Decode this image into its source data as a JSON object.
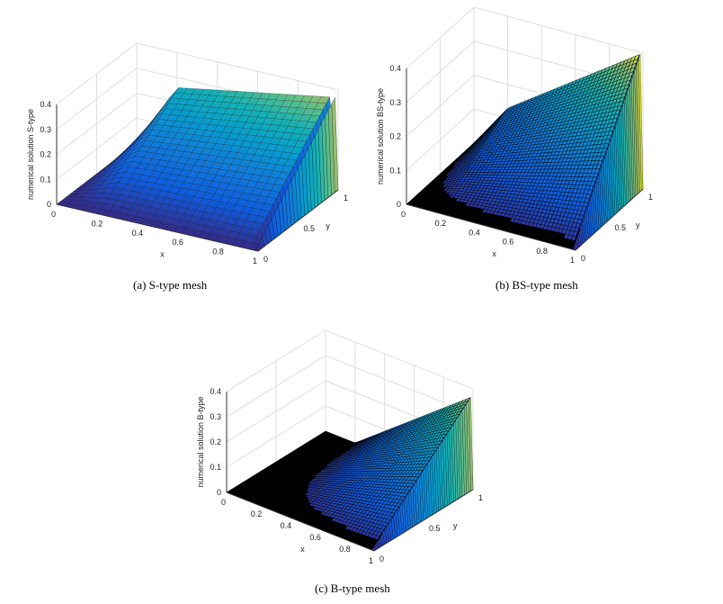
{
  "chart_data": [
    {
      "type": "surface",
      "caption": "(a)  S-type mesh",
      "zlabel": "numerical solution S-type",
      "xlabel": "x",
      "ylabel": "y",
      "x_ticks": [
        "0",
        "0.2",
        "0.4",
        "0.6",
        "0.8",
        "1"
      ],
      "y_ticks": [
        "0",
        "0.5",
        "1"
      ],
      "z_ticks": [
        "0",
        "0.1",
        "0.2",
        "0.3",
        "0.4"
      ],
      "xlim": [
        0,
        1
      ],
      "ylim": [
        0,
        1
      ],
      "zlim": [
        0,
        0.4
      ],
      "grid": true,
      "colormap": "parula",
      "mesh_edges": "black",
      "z_values": {
        "at_x0_y0": 0.0,
        "at_x0_y1": 0.0,
        "at_x1_y0": 0.0,
        "at_x1_y1": 0.37,
        "at_x0.2_y1": 0.26
      }
    },
    {
      "type": "surface",
      "caption": "(b)  BS-type mesh",
      "zlabel": "numerical solution BS-type",
      "xlabel": "x",
      "ylabel": "y",
      "x_ticks": [
        "0",
        "0.2",
        "0.4",
        "0.6",
        "0.8",
        "1"
      ],
      "y_ticks": [
        "0",
        "0.5",
        "1"
      ],
      "z_ticks": [
        "0",
        "0.1",
        "0.2",
        "0.3",
        "0.4"
      ],
      "xlim": [
        0,
        1
      ],
      "ylim": [
        0,
        1
      ],
      "zlim": [
        0,
        0.4
      ],
      "grid": true,
      "colormap": "parula",
      "mesh_edges": "black",
      "z_values": {
        "at_x0_y0": 0.0,
        "at_x0_y1": 0.0,
        "at_x1_y0": 0.0,
        "at_x1_y1": 0.4,
        "at_x0.2_y1": 0.13
      }
    },
    {
      "type": "surface",
      "caption": "(c)  B-type mesh",
      "zlabel": "numerical solution B-type",
      "xlabel": "x",
      "ylabel": "y",
      "x_ticks": [
        "0",
        "0.2",
        "0.4",
        "0.6",
        "0.8",
        "1"
      ],
      "y_ticks": [
        "0",
        "0.5",
        "1"
      ],
      "z_ticks": [
        "0",
        "0.1",
        "0.2",
        "0.3",
        "0.4"
      ],
      "xlim": [
        0,
        1
      ],
      "ylim": [
        0,
        1
      ],
      "zlim": [
        0,
        0.4
      ],
      "grid": true,
      "colormap": "parula",
      "mesh_edges": "black",
      "z_values": {
        "at_x0_y0": 0.0,
        "at_x0_y1": 0.0,
        "at_x1_y0": 0.0,
        "at_x1_y1": 0.37,
        "at_x0.2_y1": 0.0
      }
    }
  ]
}
